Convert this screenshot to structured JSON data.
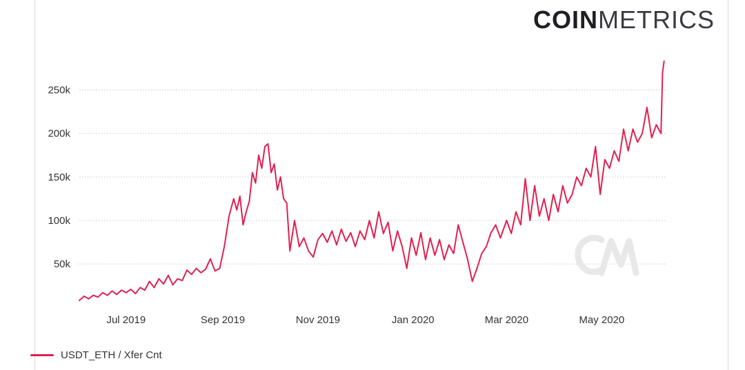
{
  "brand": {
    "logo_bold": "COIN",
    "logo_light": "METRICS",
    "watermark": "CM"
  },
  "legend": {
    "items": [
      {
        "label": "USDT_ETH / Xfer Cnt",
        "color": "#e0204f"
      }
    ]
  },
  "chart_data": {
    "type": "line",
    "title": "",
    "xlabel": "",
    "ylabel": "",
    "x_range": [
      "2019-06-01",
      "2020-06-11"
    ],
    "ylim": [
      5000,
      290000
    ],
    "grid": {
      "horizontal": true,
      "vertical": false
    },
    "legend_position": "bottom-left",
    "x_ticks": [
      {
        "date": "2019-07-01",
        "label": "Jul 2019"
      },
      {
        "date": "2019-09-01",
        "label": "Sep 2019"
      },
      {
        "date": "2019-11-01",
        "label": "Nov 2019"
      },
      {
        "date": "2020-01-01",
        "label": "Jan 2020"
      },
      {
        "date": "2020-03-01",
        "label": "Mar 2020"
      },
      {
        "date": "2020-05-01",
        "label": "May 2020"
      }
    ],
    "y_ticks": [
      {
        "value": 50000,
        "label": "50k"
      },
      {
        "value": 100000,
        "label": "100k"
      },
      {
        "value": 150000,
        "label": "150k"
      },
      {
        "value": 200000,
        "label": "200k"
      },
      {
        "value": 250000,
        "label": "250k"
      }
    ],
    "series": [
      {
        "name": "USDT_ETH / Xfer Cnt",
        "color": "#e0204f",
        "points": [
          [
            "2019-06-01",
            8000
          ],
          [
            "2019-06-04",
            13000
          ],
          [
            "2019-06-07",
            10000
          ],
          [
            "2019-06-10",
            14000
          ],
          [
            "2019-06-13",
            12000
          ],
          [
            "2019-06-16",
            17000
          ],
          [
            "2019-06-19",
            14000
          ],
          [
            "2019-06-22",
            19000
          ],
          [
            "2019-06-25",
            15000
          ],
          [
            "2019-06-28",
            20000
          ],
          [
            "2019-07-01",
            17000
          ],
          [
            "2019-07-04",
            21000
          ],
          [
            "2019-07-07",
            16000
          ],
          [
            "2019-07-10",
            23000
          ],
          [
            "2019-07-13",
            20000
          ],
          [
            "2019-07-16",
            30000
          ],
          [
            "2019-07-19",
            23000
          ],
          [
            "2019-07-22",
            33000
          ],
          [
            "2019-07-25",
            27000
          ],
          [
            "2019-07-28",
            37000
          ],
          [
            "2019-07-31",
            26000
          ],
          [
            "2019-08-03",
            33000
          ],
          [
            "2019-08-06",
            31000
          ],
          [
            "2019-08-09",
            43000
          ],
          [
            "2019-08-12",
            38000
          ],
          [
            "2019-08-15",
            45000
          ],
          [
            "2019-08-18",
            40000
          ],
          [
            "2019-08-21",
            44000
          ],
          [
            "2019-08-24",
            56000
          ],
          [
            "2019-08-27",
            42000
          ],
          [
            "2019-08-30",
            45000
          ],
          [
            "2019-09-02",
            70000
          ],
          [
            "2019-09-05",
            105000
          ],
          [
            "2019-09-08",
            125000
          ],
          [
            "2019-09-10",
            112000
          ],
          [
            "2019-09-12",
            128000
          ],
          [
            "2019-09-14",
            95000
          ],
          [
            "2019-09-16",
            110000
          ],
          [
            "2019-09-18",
            122000
          ],
          [
            "2019-09-20",
            155000
          ],
          [
            "2019-09-22",
            143000
          ],
          [
            "2019-09-24",
            175000
          ],
          [
            "2019-09-26",
            160000
          ],
          [
            "2019-09-28",
            185000
          ],
          [
            "2019-09-30",
            188000
          ],
          [
            "2019-10-02",
            155000
          ],
          [
            "2019-10-04",
            165000
          ],
          [
            "2019-10-06",
            135000
          ],
          [
            "2019-10-08",
            150000
          ],
          [
            "2019-10-10",
            125000
          ],
          [
            "2019-10-12",
            120000
          ],
          [
            "2019-10-14",
            65000
          ],
          [
            "2019-10-17",
            100000
          ],
          [
            "2019-10-20",
            70000
          ],
          [
            "2019-10-23",
            80000
          ],
          [
            "2019-10-26",
            65000
          ],
          [
            "2019-10-29",
            58000
          ],
          [
            "2019-11-01",
            78000
          ],
          [
            "2019-11-04",
            85000
          ],
          [
            "2019-11-07",
            75000
          ],
          [
            "2019-11-10",
            88000
          ],
          [
            "2019-11-13",
            72000
          ],
          [
            "2019-11-16",
            90000
          ],
          [
            "2019-11-19",
            76000
          ],
          [
            "2019-11-22",
            86000
          ],
          [
            "2019-11-25",
            70000
          ],
          [
            "2019-11-28",
            88000
          ],
          [
            "2019-12-01",
            78000
          ],
          [
            "2019-12-04",
            100000
          ],
          [
            "2019-12-07",
            80000
          ],
          [
            "2019-12-10",
            110000
          ],
          [
            "2019-12-13",
            85000
          ],
          [
            "2019-12-16",
            98000
          ],
          [
            "2019-12-19",
            65000
          ],
          [
            "2019-12-22",
            88000
          ],
          [
            "2019-12-25",
            70000
          ],
          [
            "2019-12-28",
            45000
          ],
          [
            "2019-12-31",
            80000
          ],
          [
            "2020-01-03",
            60000
          ],
          [
            "2020-01-06",
            86000
          ],
          [
            "2020-01-09",
            55000
          ],
          [
            "2020-01-12",
            80000
          ],
          [
            "2020-01-15",
            60000
          ],
          [
            "2020-01-18",
            78000
          ],
          [
            "2020-01-21",
            55000
          ],
          [
            "2020-01-24",
            72000
          ],
          [
            "2020-01-27",
            62000
          ],
          [
            "2020-01-30",
            95000
          ],
          [
            "2020-02-02",
            75000
          ],
          [
            "2020-02-05",
            55000
          ],
          [
            "2020-02-08",
            30000
          ],
          [
            "2020-02-11",
            45000
          ],
          [
            "2020-02-14",
            62000
          ],
          [
            "2020-02-17",
            70000
          ],
          [
            "2020-02-20",
            86000
          ],
          [
            "2020-02-23",
            95000
          ],
          [
            "2020-02-26",
            80000
          ],
          [
            "2020-03-01",
            100000
          ],
          [
            "2020-03-04",
            85000
          ],
          [
            "2020-03-07",
            110000
          ],
          [
            "2020-03-10",
            95000
          ],
          [
            "2020-03-13",
            148000
          ],
          [
            "2020-03-16",
            100000
          ],
          [
            "2020-03-19",
            140000
          ],
          [
            "2020-03-22",
            105000
          ],
          [
            "2020-03-25",
            125000
          ],
          [
            "2020-03-28",
            100000
          ],
          [
            "2020-03-31",
            130000
          ],
          [
            "2020-04-03",
            110000
          ],
          [
            "2020-04-06",
            140000
          ],
          [
            "2020-04-09",
            120000
          ],
          [
            "2020-04-12",
            130000
          ],
          [
            "2020-04-15",
            150000
          ],
          [
            "2020-04-18",
            140000
          ],
          [
            "2020-04-21",
            160000
          ],
          [
            "2020-04-24",
            150000
          ],
          [
            "2020-04-27",
            185000
          ],
          [
            "2020-04-30",
            130000
          ],
          [
            "2020-05-03",
            170000
          ],
          [
            "2020-05-06",
            160000
          ],
          [
            "2020-05-09",
            180000
          ],
          [
            "2020-05-12",
            168000
          ],
          [
            "2020-05-15",
            205000
          ],
          [
            "2020-05-18",
            180000
          ],
          [
            "2020-05-21",
            205000
          ],
          [
            "2020-05-24",
            190000
          ],
          [
            "2020-05-27",
            200000
          ],
          [
            "2020-05-30",
            230000
          ],
          [
            "2020-06-02",
            195000
          ],
          [
            "2020-06-05",
            210000
          ],
          [
            "2020-06-08",
            200000
          ],
          [
            "2020-06-09",
            270000
          ],
          [
            "2020-06-10",
            283000
          ]
        ]
      }
    ]
  }
}
